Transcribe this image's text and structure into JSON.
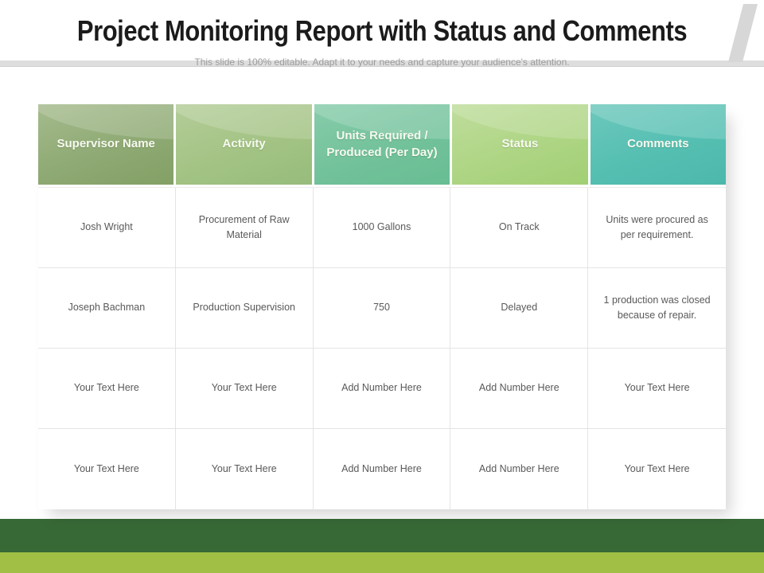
{
  "slide": {
    "title": "Project Monitoring Report with Status and Comments",
    "subtitle": "This slide is 100% editable. Adapt it to your needs and capture your audience's attention."
  },
  "table": {
    "columns": [
      {
        "label": "Supervisor Name",
        "base": "#8faa74",
        "light": "#a5bb8d",
        "dark": "#83a066"
      },
      {
        "label": "Activity",
        "base": "#a3c384",
        "light": "#b4cd99",
        "dark": "#96bc7b"
      },
      {
        "label": "Units Required / Produced (Per Day)",
        "base": "#72c29b",
        "light": "#88ccab",
        "dark": "#68bd92"
      },
      {
        "label": "Status",
        "base": "#aed584",
        "light": "#bfdd9c",
        "dark": "#a2cf75"
      },
      {
        "label": "Comments",
        "base": "#55bfb2",
        "light": "#6dc8bc",
        "dark": "#4cb8ab"
      }
    ],
    "rows": [
      [
        "Josh Wright",
        "Procurement of Raw Material",
        "1000 Gallons",
        "On Track",
        "Units were procured as per requirement."
      ],
      [
        "Joseph Bachman",
        "Production Supervision",
        "750",
        "Delayed",
        "1 production was closed because of repair."
      ],
      [
        "Your Text Here",
        "Your Text Here",
        "Add Number Here",
        "Add Number Here",
        "Your Text Here"
      ],
      [
        "Your Text Here",
        "Your Text Here",
        "Add Number Here",
        "Add Number Here",
        "Your Text Here"
      ]
    ]
  },
  "decor": {
    "top_band_color": "#dedede",
    "corner_flag_color": "#d7d7d7",
    "footer_bar_dark_color": "#376936",
    "footer_bar_light_color": "#a0bf44"
  }
}
